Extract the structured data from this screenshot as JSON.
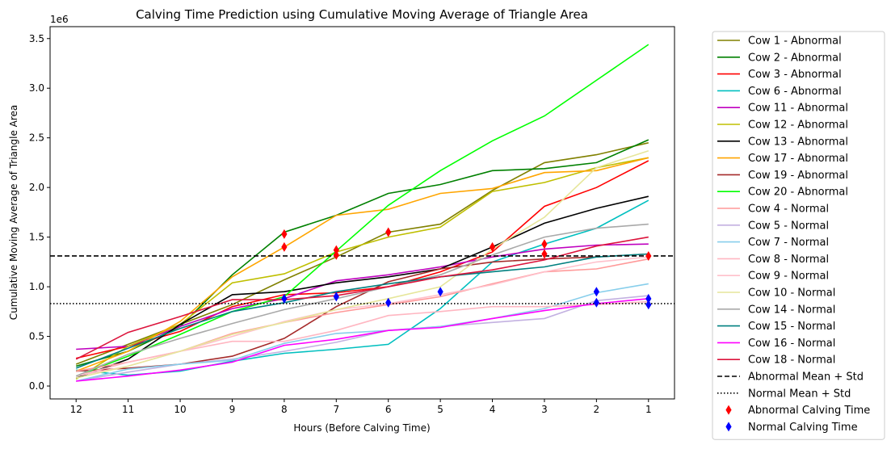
{
  "chart_data": {
    "type": "line",
    "title": "Calving Time Prediction using Cumulative Moving Average of Triangle Area",
    "xlabel": "Hours (Before Calving Time)",
    "ylabel": "Cumulative Moving Average of Triangle Area",
    "y_scale_label": "1e6",
    "x": [
      12,
      11,
      10,
      9,
      8,
      7,
      6,
      5,
      4,
      3,
      2,
      1
    ],
    "x_ticks": [
      "12",
      "11",
      "10",
      "9",
      "8",
      "7",
      "6",
      "5",
      "4",
      "3",
      "2",
      "1"
    ],
    "y_ticks": [
      0.0,
      0.5,
      1.0,
      1.5,
      2.0,
      2.5,
      3.0,
      3.5
    ],
    "y_tick_labels": [
      "0.0",
      "0.5",
      "1.0",
      "1.5",
      "2.0",
      "2.5",
      "3.0",
      "3.5"
    ],
    "ylim": [
      -0.13,
      3.62
    ],
    "xlim": [
      12.5,
      0.5
    ],
    "grid": false,
    "legend_placement": "outside-right",
    "series": [
      {
        "name": "Cow 1 - Abnormal",
        "color": "#808000",
        "values": [
          0.22,
          0.42,
          0.62,
          0.82,
          1.07,
          1.3,
          1.55,
          1.63,
          1.97,
          2.25,
          2.33,
          2.45
        ]
      },
      {
        "name": "Cow 2 - Abnormal",
        "color": "#008000",
        "values": [
          0.2,
          0.35,
          0.6,
          1.12,
          1.55,
          1.72,
          1.94,
          2.03,
          2.17,
          2.19,
          2.25,
          2.48
        ]
      },
      {
        "name": "Cow 3 - Abnormal",
        "color": "#ff0000",
        "values": [
          0.28,
          0.4,
          0.55,
          0.8,
          0.92,
          0.94,
          1.0,
          1.15,
          1.35,
          1.81,
          2.0,
          2.27
        ]
      },
      {
        "name": "Cow 6 - Abnormal",
        "color": "#00bfbf",
        "values": [
          0.16,
          0.11,
          0.15,
          0.25,
          0.33,
          0.37,
          0.42,
          0.78,
          1.25,
          1.43,
          1.59,
          1.87
        ]
      },
      {
        "name": "Cow 11 - Abnormal",
        "color": "#bf00bf",
        "values": [
          0.37,
          0.4,
          0.6,
          0.78,
          0.88,
          1.06,
          1.12,
          1.2,
          1.3,
          1.38,
          1.42,
          1.43
        ]
      },
      {
        "name": "Cow 12 - Abnormal",
        "color": "#bfbf00",
        "values": [
          0.07,
          0.4,
          0.62,
          1.04,
          1.13,
          1.35,
          1.5,
          1.6,
          1.96,
          2.05,
          2.2,
          2.3
        ]
      },
      {
        "name": "Cow 13 - Abnormal",
        "color": "#000000",
        "values": [
          0.08,
          0.27,
          0.62,
          0.92,
          0.95,
          1.04,
          1.1,
          1.18,
          1.4,
          1.64,
          1.79,
          1.91
        ]
      },
      {
        "name": "Cow 17 - Abnormal",
        "color": "#ffa500",
        "values": [
          0.15,
          0.35,
          0.65,
          1.1,
          1.4,
          1.72,
          1.78,
          1.94,
          1.99,
          2.15,
          2.17,
          2.3
        ]
      },
      {
        "name": "Cow 19 - Abnormal",
        "color": "#a52a2a",
        "values": [
          0.15,
          0.18,
          0.22,
          0.3,
          0.48,
          0.8,
          1.05,
          1.18,
          1.25,
          1.28,
          1.3,
          1.33
        ]
      },
      {
        "name": "Cow 20 - Abnormal",
        "color": "#00ff00",
        "values": [
          0.1,
          0.3,
          0.52,
          0.75,
          0.9,
          1.36,
          1.82,
          2.17,
          2.47,
          2.72,
          3.08,
          3.44
        ]
      },
      {
        "name": "Cow 4 - Normal",
        "color": "#ff9999",
        "values": [
          0.15,
          0.24,
          0.35,
          0.53,
          0.64,
          0.74,
          0.82,
          0.9,
          1.03,
          1.15,
          1.18,
          1.28
        ]
      },
      {
        "name": "Cow 5 - Normal",
        "color": "#c3b1e1",
        "values": [
          0.05,
          0.14,
          0.22,
          0.27,
          0.35,
          0.44,
          0.56,
          0.6,
          0.64,
          0.68,
          0.86,
          0.91
        ]
      },
      {
        "name": "Cow 7 - Normal",
        "color": "#87ceeb",
        "values": [
          0.05,
          0.17,
          0.22,
          0.26,
          0.43,
          0.53,
          0.56,
          0.6,
          0.68,
          0.78,
          0.94,
          1.03
        ]
      },
      {
        "name": "Cow 8 - Normal",
        "color": "#ffb6c1",
        "values": [
          0.1,
          0.24,
          0.35,
          0.45,
          0.45,
          0.56,
          0.71,
          0.75,
          0.8,
          0.8,
          0.82,
          0.85
        ]
      },
      {
        "name": "Cow 9 - Normal",
        "color": "#ffc0cb",
        "values": [
          0.1,
          0.2,
          0.35,
          0.5,
          0.65,
          0.77,
          0.83,
          0.92,
          1.02,
          1.15,
          1.25,
          1.3
        ]
      },
      {
        "name": "Cow 10 - Normal",
        "color": "#e6e69a",
        "values": [
          0.08,
          0.2,
          0.35,
          0.52,
          0.64,
          0.77,
          0.88,
          1.0,
          1.38,
          1.7,
          2.2,
          2.37
        ]
      },
      {
        "name": "Cow 14 - Normal",
        "color": "#a9a9a9",
        "values": [
          0.1,
          0.32,
          0.48,
          0.63,
          0.77,
          0.88,
          1.0,
          1.12,
          1.32,
          1.5,
          1.59,
          1.63
        ]
      },
      {
        "name": "Cow 15 - Normal",
        "color": "#008080",
        "values": [
          0.18,
          0.38,
          0.58,
          0.75,
          0.84,
          0.95,
          1.03,
          1.1,
          1.15,
          1.2,
          1.3,
          1.33
        ]
      },
      {
        "name": "Cow 16 - Normal",
        "color": "#ff00ff",
        "values": [
          0.05,
          0.1,
          0.16,
          0.24,
          0.41,
          0.47,
          0.56,
          0.59,
          0.68,
          0.76,
          0.83,
          0.88
        ]
      },
      {
        "name": "Cow 18 - Normal",
        "color": "#dc143c",
        "values": [
          0.27,
          0.54,
          0.7,
          0.87,
          0.87,
          0.91,
          1.0,
          1.1,
          1.17,
          1.27,
          1.41,
          1.5
        ]
      }
    ],
    "reference_lines": [
      {
        "name": "Abnormal Mean + Std",
        "value": 1.31,
        "style": "dashed",
        "color": "#000000"
      },
      {
        "name": "Normal Mean + Std",
        "value": 0.83,
        "style": "dotted",
        "color": "#000000"
      }
    ],
    "markers": [
      {
        "name": "Abnormal Calving Time",
        "color": "#ff0000",
        "points": [
          [
            8,
            1.53
          ],
          [
            8,
            1.4
          ],
          [
            7,
            1.37
          ],
          [
            7,
            1.32
          ],
          [
            6,
            1.55
          ],
          [
            4,
            1.4
          ],
          [
            3,
            1.43
          ],
          [
            3,
            1.33
          ],
          [
            1,
            1.31
          ]
        ]
      },
      {
        "name": "Normal Calving Time",
        "color": "#0000ff",
        "points": [
          [
            8,
            0.88
          ],
          [
            7,
            0.9
          ],
          [
            6,
            0.84
          ],
          [
            5,
            0.95
          ],
          [
            2,
            0.95
          ],
          [
            2,
            0.84
          ],
          [
            1,
            0.88
          ],
          [
            1,
            0.82
          ]
        ]
      }
    ]
  }
}
